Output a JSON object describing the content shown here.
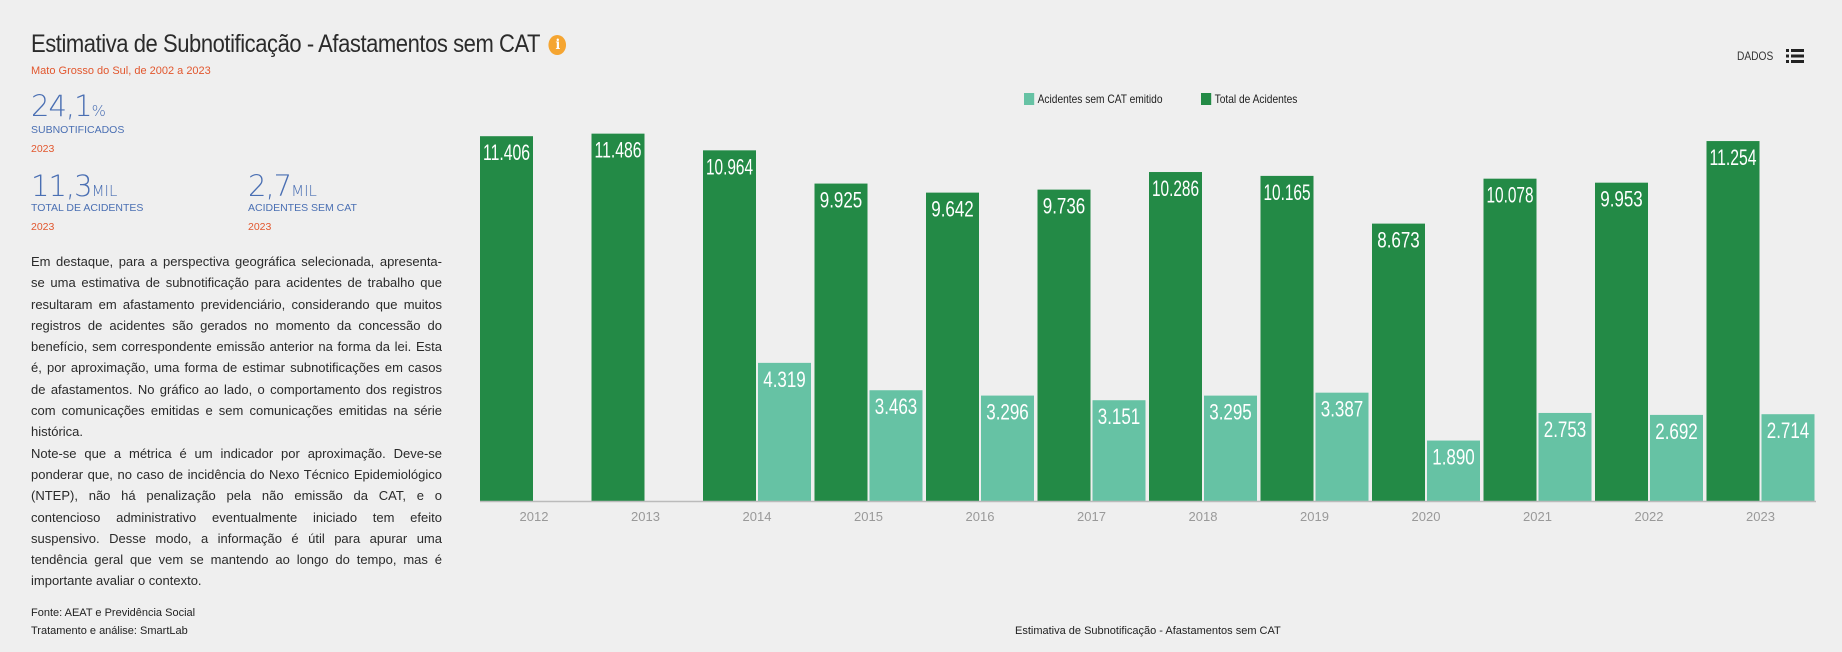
{
  "header": {
    "title": "Estimativa de Subnotificação - Afastamentos sem CAT",
    "info_icon": "info-icon",
    "subtitle": "Mato Grosso do Sul, de 2002 a 2023",
    "dados_label": "DADOS",
    "list_icon": "list-icon"
  },
  "kpis": {
    "rate": {
      "value": "24,1",
      "unit": "%",
      "label": "SUBNOTIFICADOS",
      "year": "2023"
    },
    "total": {
      "value": "11,3",
      "unit": "MIL",
      "label": "TOTAL DE ACIDENTES",
      "year": "2023"
    },
    "no_cat": {
      "value": "2,7",
      "unit": "MIL",
      "label": "ACIDENTES SEM CAT",
      "year": "2023"
    }
  },
  "description": {
    "p1": "Em destaque, para a perspectiva geográfica selecionada, apresenta-se uma estimativa de subnotificação para acidentes de trabalho que resultaram em afastamento previdenciário, considerando que muitos registros de acidentes são gerados no momento da concessão do benefício, sem correspondente emissão anterior na forma da lei. Esta é, por aproximação, uma forma de estimar subnotificações em casos de afastamentos. No gráfico ao lado, o comportamento dos registros com comunicações emitidas e sem comunicações emitidas na série histórica.",
    "p2": "Note-se que a métrica é um indicador por aproximação. Deve-se ponderar que, no caso de incidência do Nexo Técnico Epidemiológico (NTEP), não há penalização pela não emissão da CAT, e o contencioso administrativo eventualmente iniciado tem efeito suspensivo. Desse modo, a informação é útil para apurar uma tendência geral que vem se mantendo ao longo do tempo, mas é importante avaliar o contexto."
  },
  "source": {
    "line1": "Fonte: AEAT e Previdência Social",
    "line2": "Tratamento e análise: SmartLab"
  },
  "colors": {
    "total": "#238a46",
    "no_cat": "#66c2a4",
    "accent_orange": "#f5a531",
    "kpi_blue": "#4a6fb3",
    "kpi_red": "#e2572e"
  },
  "chart_data": {
    "type": "bar",
    "caption": "Estimativa de Subnotificação - Afastamentos sem CAT",
    "categories": [
      "2012",
      "2013",
      "2014",
      "2015",
      "2016",
      "2017",
      "2018",
      "2019",
      "2020",
      "2021",
      "2022",
      "2023"
    ],
    "series": [
      {
        "name": "Total de Acidentes",
        "values": [
          11406,
          11486,
          10964,
          9925,
          9642,
          9736,
          10286,
          10165,
          8673,
          10078,
          9953,
          11254
        ],
        "labels": [
          "11.406",
          "11.486",
          "10.964",
          "9.925",
          "9.642",
          "9.736",
          "10.286",
          "10.165",
          "8.673",
          "10.078",
          "9.953",
          "11.254"
        ]
      },
      {
        "name": "Acidentes sem CAT emitido",
        "values": [
          null,
          null,
          4319,
          3463,
          3296,
          3151,
          3295,
          3387,
          1890,
          2753,
          2692,
          2714
        ],
        "labels": [
          "",
          "",
          "4.319",
          "3.463",
          "3.296",
          "3.151",
          "3.295",
          "3.387",
          "1.890",
          "2.753",
          "2.692",
          "2.714"
        ]
      }
    ],
    "legend": [
      "Acidentes sem CAT emitido",
      "Total de Acidentes"
    ],
    "legend_position": "top",
    "ylim": [
      0,
      11600
    ],
    "grid": false
  }
}
